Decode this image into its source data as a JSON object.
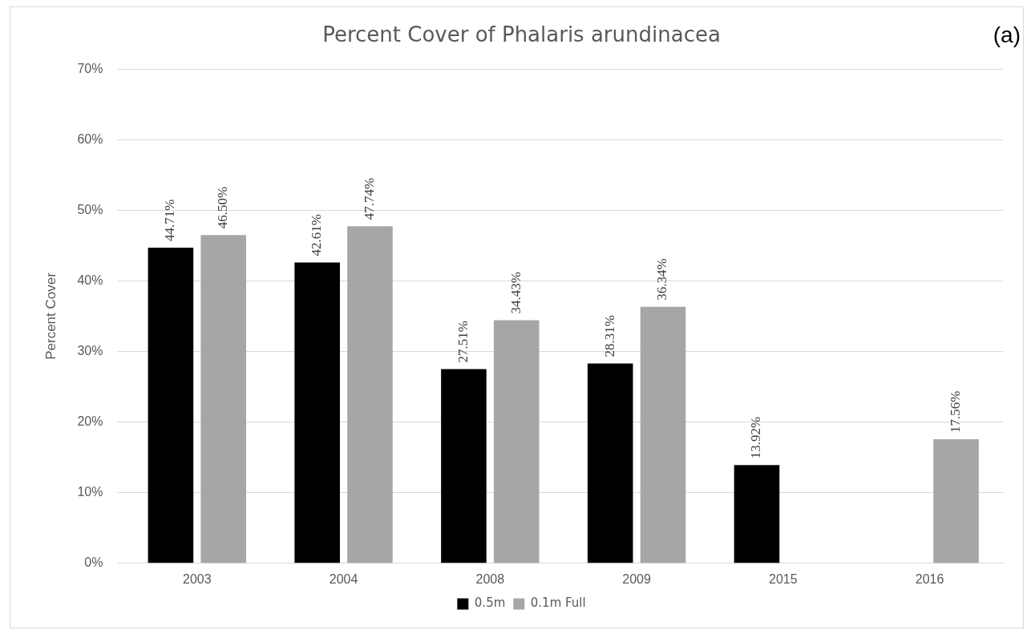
{
  "chart_data": {
    "type": "bar",
    "title": "Percent Cover of Phalaris arundinacea",
    "ylabel": "Percent Cover",
    "categories": [
      "2003",
      "2004",
      "2008",
      "2009",
      "2015",
      "2016"
    ],
    "series": [
      {
        "name": "0.5m",
        "color": "#000000",
        "values": [
          44.71,
          42.61,
          27.51,
          28.31,
          13.92,
          null
        ],
        "value_labels": [
          "44.71%",
          "42.61%",
          "27.51%",
          "28.31%",
          "13.92%",
          null
        ]
      },
      {
        "name": "0.1m Full",
        "color": "#a6a6a6",
        "values": [
          46.5,
          47.74,
          34.43,
          36.34,
          null,
          17.56
        ],
        "value_labels": [
          "46.50%",
          "47.74%",
          "34.43%",
          "36.34%",
          null,
          "17.56%"
        ]
      }
    ],
    "ylim": [
      0,
      70
    ],
    "yticks": [
      {
        "value": 0,
        "label": "0%"
      },
      {
        "value": 10,
        "label": "10%"
      },
      {
        "value": 20,
        "label": "20%"
      },
      {
        "value": 30,
        "label": "30%"
      },
      {
        "value": 40,
        "label": "40%"
      },
      {
        "value": 50,
        "label": "50%"
      },
      {
        "value": 60,
        "label": "60%"
      },
      {
        "value": 70,
        "label": "70%"
      }
    ],
    "grid": "y",
    "legend": "bottom",
    "annotations": [
      "(a)"
    ]
  }
}
